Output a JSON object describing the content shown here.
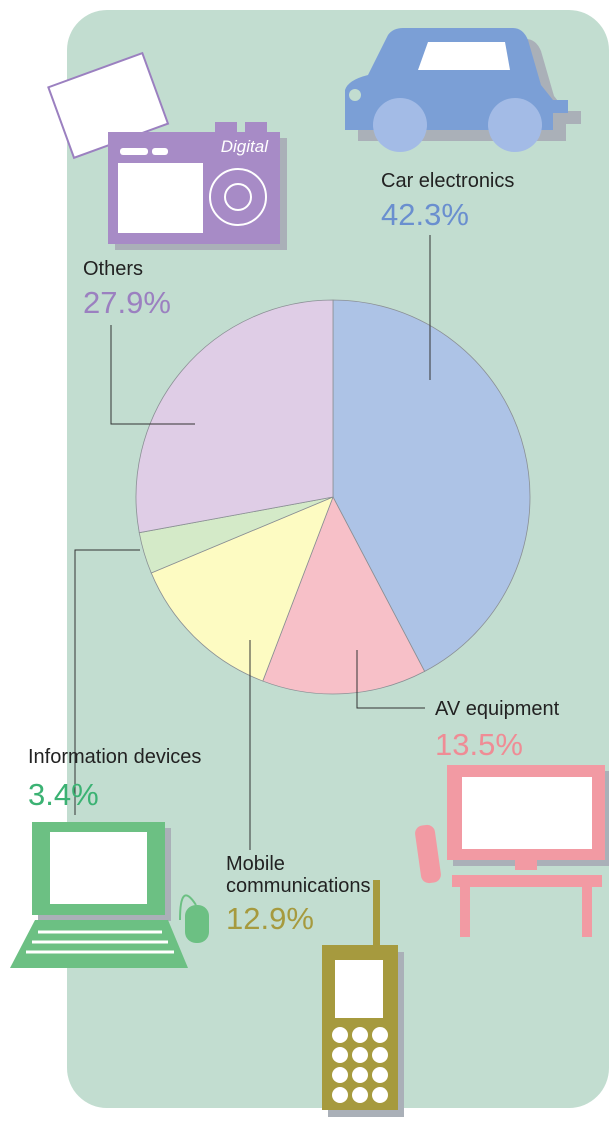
{
  "chart_data": {
    "type": "pie",
    "categories": [
      "Car electronics",
      "AV equipment",
      "Mobile communications",
      "Information devices",
      "Others"
    ],
    "values": [
      42.3,
      13.5,
      12.9,
      3.4,
      27.9
    ],
    "value_labels": [
      "42.3%",
      "13.5%",
      "12.9%",
      "3.4%",
      "27.9%"
    ],
    "colors": [
      "#adc3e6",
      "#f7c0c8",
      "#fdfbc2",
      "#d4eac8",
      "#dfcde6"
    ],
    "label_colors": [
      "#6a8fcf",
      "#ef8c95",
      "#a69a3e",
      "#3bb273",
      "#9b80c0"
    ]
  },
  "icons": {
    "camera_label": "Digital"
  }
}
